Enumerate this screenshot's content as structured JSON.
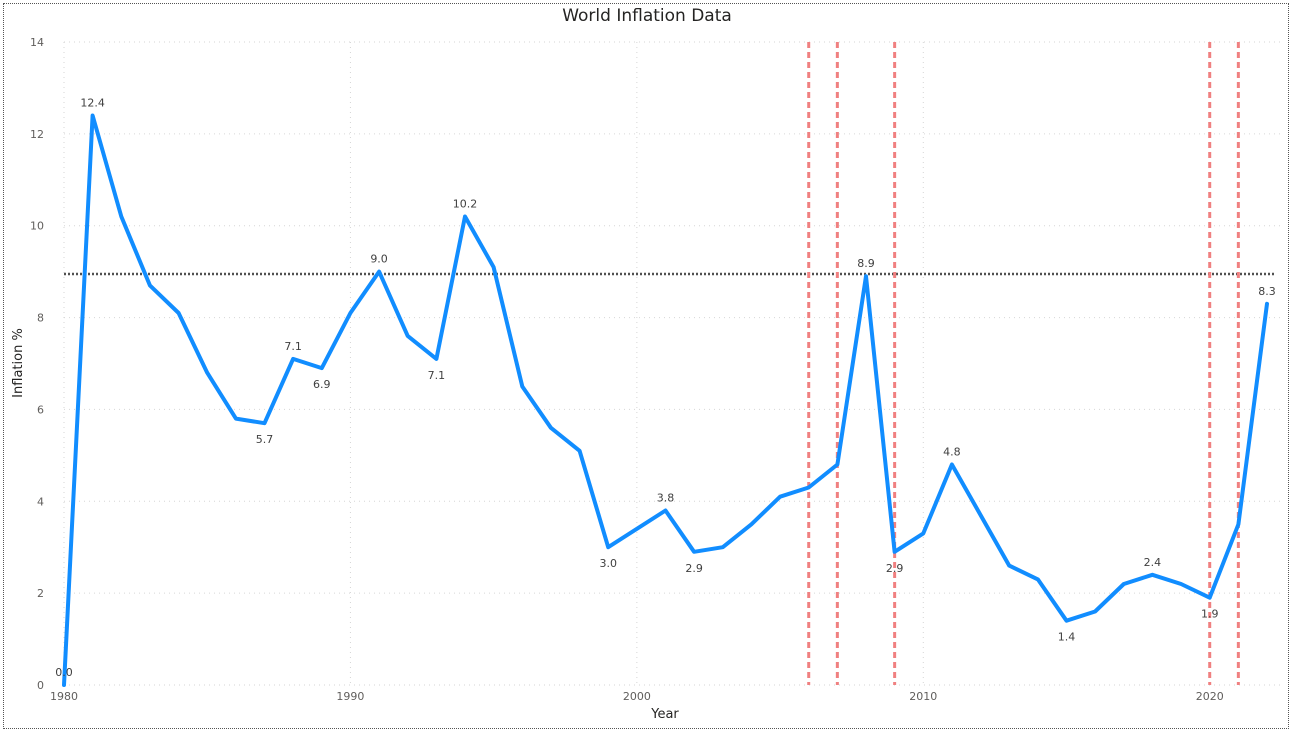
{
  "chart_data": {
    "type": "line",
    "title": "World Inflation Data",
    "xlabel": "Year",
    "ylabel": "Inflation %",
    "xlim": [
      1980,
      2022
    ],
    "ylim": [
      0,
      14
    ],
    "x_ticks": [
      1980,
      1990,
      2000,
      2010,
      2020
    ],
    "y_ticks": [
      0,
      2,
      4,
      6,
      8,
      10,
      12,
      14
    ],
    "grid": true,
    "line_color": "#118DFF",
    "series": [
      {
        "x": [
          1980,
          1981,
          1982,
          1983,
          1984,
          1985,
          1986,
          1987,
          1988,
          1989,
          1990,
          1991,
          1992,
          1993,
          1994,
          1995,
          1996,
          1997,
          1998,
          1999,
          2000,
          2001,
          2002,
          2003,
          2004,
          2005,
          2006,
          2007,
          2008,
          2009,
          2010,
          2011,
          2012,
          2013,
          2014,
          2015,
          2016,
          2017,
          2018,
          2019,
          2020,
          2021,
          2022
        ],
        "values": [
          0.0,
          12.4,
          10.2,
          8.7,
          8.1,
          6.8,
          5.8,
          5.7,
          7.1,
          6.9,
          8.1,
          9.0,
          7.6,
          7.1,
          10.2,
          9.1,
          6.5,
          5.6,
          5.1,
          3.0,
          3.4,
          3.8,
          2.9,
          3.0,
          3.5,
          4.1,
          4.3,
          4.8,
          8.9,
          2.9,
          3.3,
          4.8,
          3.7,
          2.6,
          2.3,
          1.4,
          1.6,
          2.2,
          2.4,
          2.2,
          1.9,
          3.5,
          8.3
        ]
      }
    ],
    "data_labels": [
      {
        "x": 1980,
        "y": 0.0,
        "text": "0.0",
        "pos": "above"
      },
      {
        "x": 1981,
        "y": 12.4,
        "text": "12.4",
        "pos": "above"
      },
      {
        "x": 1987,
        "y": 5.7,
        "text": "5.7",
        "pos": "below"
      },
      {
        "x": 1988,
        "y": 7.1,
        "text": "7.1",
        "pos": "above"
      },
      {
        "x": 1989,
        "y": 6.9,
        "text": "6.9",
        "pos": "below"
      },
      {
        "x": 1991,
        "y": 9.0,
        "text": "9.0",
        "pos": "above"
      },
      {
        "x": 1993,
        "y": 7.1,
        "text": "7.1",
        "pos": "below"
      },
      {
        "x": 1994,
        "y": 10.2,
        "text": "10.2",
        "pos": "above"
      },
      {
        "x": 1999,
        "y": 3.0,
        "text": "3.0",
        "pos": "below"
      },
      {
        "x": 2001,
        "y": 3.8,
        "text": "3.8",
        "pos": "above"
      },
      {
        "x": 2002,
        "y": 2.9,
        "text": "2.9",
        "pos": "below"
      },
      {
        "x": 2008,
        "y": 8.9,
        "text": "8.9",
        "pos": "above"
      },
      {
        "x": 2009,
        "y": 2.9,
        "text": "2.9",
        "pos": "below"
      },
      {
        "x": 2011,
        "y": 4.8,
        "text": "4.8",
        "pos": "above"
      },
      {
        "x": 2015,
        "y": 1.4,
        "text": "1.4",
        "pos": "below"
      },
      {
        "x": 2018,
        "y": 2.4,
        "text": "2.4",
        "pos": "above"
      },
      {
        "x": 2020,
        "y": 1.9,
        "text": "1.9",
        "pos": "below"
      },
      {
        "x": 2022,
        "y": 8.3,
        "text": "8.3",
        "pos": "above"
      }
    ],
    "reference_line": {
      "y": 8.95,
      "color": "#505050",
      "style": "dotted"
    },
    "vertical_reference_lines": {
      "x": [
        2006,
        2007,
        2009,
        2020,
        2021
      ],
      "color": "#F08080",
      "style": "dashed"
    }
  }
}
